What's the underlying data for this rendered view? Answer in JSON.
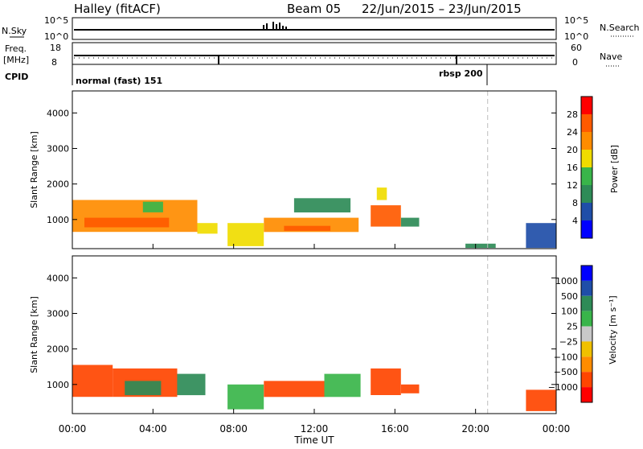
{
  "header": {
    "title": "Halley (fitACF)",
    "beam": "Beam 05",
    "date_range": "22/Jun/2015 – 23/Jun/2015"
  },
  "strips": {
    "nsky": {
      "left_label": "N.Sky",
      "left_ticks": [
        "10^5",
        "10^0"
      ],
      "right_label": "N.Search",
      "right_ticks": [
        "10^5",
        "10^0"
      ]
    },
    "freq": {
      "left_label": "Freq.",
      "left_unit": "[MHz]",
      "left_ticks": [
        "18",
        "8"
      ],
      "right_label": "Nave",
      "right_ticks": [
        "60",
        "0"
      ]
    },
    "cpid": {
      "label": "CPID",
      "modes": [
        "normal (fast) 151",
        "rbsp 200"
      ]
    }
  },
  "colors": {
    "power": [
      "#0000ff",
      "#1f4ea8",
      "#2e8b57",
      "#39b54a",
      "#f0dc00",
      "#ff8c00",
      "#ff5a00",
      "#ff0000"
    ],
    "velocity": [
      "#ff0000",
      "#ff4500",
      "#ff8c00",
      "#f0c000",
      "#c8c8c8",
      "#39b54a",
      "#2e8b57",
      "#1f4ea8",
      "#0000ff"
    ],
    "ground_scatter": "#b4b4b4",
    "dashed_marker": "#bdbdbd"
  },
  "time_axis": {
    "label": "Time UT",
    "ticks": [
      "00:00",
      "04:00",
      "08:00",
      "12:00",
      "16:00",
      "20:00",
      "00:00"
    ]
  },
  "chart_data": [
    {
      "type": "heatmap",
      "panel": "power",
      "ylabel": "Slant Range [km]",
      "ylim": [
        180,
        4620
      ],
      "xlim_hours": [
        0,
        24
      ],
      "yticks": [
        1000,
        2000,
        3000,
        4000
      ],
      "colorbar": {
        "label": "Power [dB]",
        "ticks": [
          "4",
          "8",
          "12",
          "16",
          "20",
          "24",
          "28"
        ],
        "range": [
          0,
          32
        ]
      },
      "dashed_time_hours": 20.6,
      "regions": [
        {
          "t": [
            0.0,
            6.2
          ],
          "r": [
            650,
            1550
          ],
          "v": 20
        },
        {
          "t": [
            0.6,
            4.8
          ],
          "r": [
            780,
            1050
          ],
          "v": 27
        },
        {
          "t": [
            3.5,
            4.5
          ],
          "r": [
            1200,
            1500
          ],
          "v": 14
        },
        {
          "t": [
            6.2,
            7.2
          ],
          "r": [
            600,
            900
          ],
          "v": 16
        },
        {
          "t": [
            7.7,
            9.5
          ],
          "r": [
            250,
            900
          ],
          "v": 19
        },
        {
          "t": [
            9.5,
            14.2
          ],
          "r": [
            650,
            1050
          ],
          "v": 21
        },
        {
          "t": [
            10.5,
            12.8
          ],
          "r": [
            680,
            820
          ],
          "v": 27
        },
        {
          "t": [
            11.0,
            13.8
          ],
          "r": [
            1200,
            1600
          ],
          "v": 10
        },
        {
          "t": [
            14.8,
            16.3
          ],
          "r": [
            800,
            1400
          ],
          "v": 27
        },
        {
          "t": [
            15.1,
            15.6
          ],
          "r": [
            1550,
            1900
          ],
          "v": 16
        },
        {
          "t": [
            16.3,
            17.2
          ],
          "r": [
            800,
            1050
          ],
          "v": 8
        },
        {
          "t": [
            19.5,
            21.0
          ],
          "r": [
            200,
            320
          ],
          "v": 8
        },
        {
          "t": [
            22.5,
            24.0
          ],
          "r": [
            200,
            900
          ],
          "v": 6
        }
      ]
    },
    {
      "type": "heatmap",
      "panel": "velocity",
      "ylabel": "Slant Range [km]",
      "ylim": [
        180,
        4620
      ],
      "xlim_hours": [
        0,
        24
      ],
      "yticks": [
        1000,
        2000,
        3000,
        4000
      ],
      "colorbar": {
        "label": "Velocity [m s⁻¹]",
        "ticks": [
          "1000",
          "500",
          "100",
          "25",
          "−25",
          "−100",
          "−500",
          "−1000"
        ]
      },
      "dashed_time_hours": 20.6,
      "regions": [
        {
          "t": [
            0.0,
            2.0
          ],
          "r": [
            650,
            1550
          ],
          "v": -300
        },
        {
          "t": [
            2.0,
            5.2
          ],
          "r": [
            650,
            1450
          ],
          "v": -150
        },
        {
          "t": [
            2.6,
            4.4
          ],
          "r": [
            700,
            1100
          ],
          "v": 120
        },
        {
          "t": [
            5.2,
            6.6
          ],
          "r": [
            700,
            1300
          ],
          "v": 110
        },
        {
          "t": [
            7.7,
            9.5
          ],
          "r": [
            300,
            1000
          ],
          "v": 60
        },
        {
          "t": [
            9.5,
            12.5
          ],
          "r": [
            650,
            1100
          ],
          "v": -120
        },
        {
          "t": [
            12.5,
            14.3
          ],
          "r": [
            650,
            1300
          ],
          "v": 60
        },
        {
          "t": [
            14.8,
            16.3
          ],
          "r": [
            700,
            1450
          ],
          "v": -400
        },
        {
          "t": [
            16.3,
            17.2
          ],
          "r": [
            750,
            1000
          ],
          "v": -200
        },
        {
          "t": [
            22.5,
            24.0
          ],
          "r": [
            250,
            850
          ],
          "v": -150
        }
      ]
    }
  ]
}
